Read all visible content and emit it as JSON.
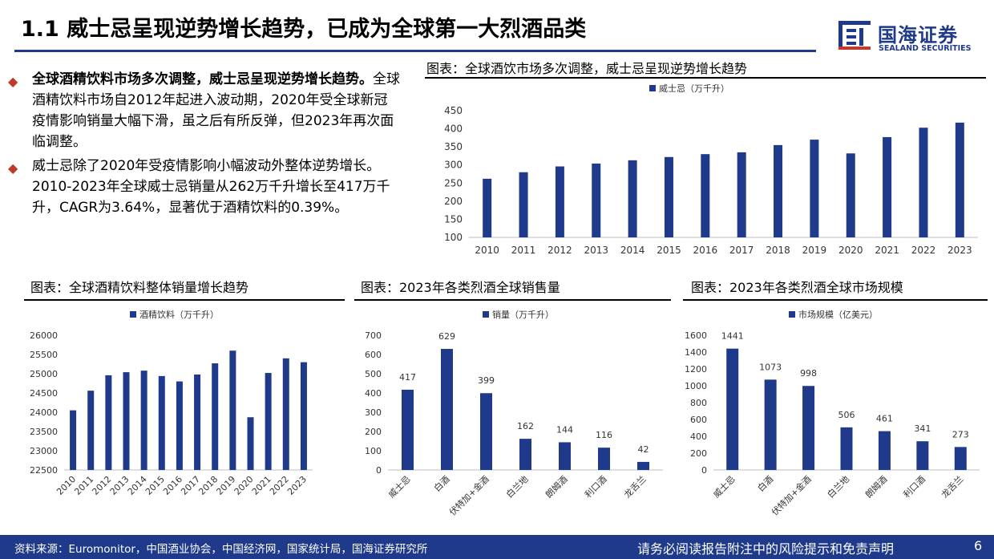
{
  "header": {
    "title": "1.1 威士忌呈现逆势增长趋势，已成为全球第一大烈酒品类",
    "logo_cn": "国海证券",
    "logo_en": "SEALAND SECURITIES"
  },
  "bullets": [
    {
      "bold": "全球酒精饮料市场多次调整，威士忌呈现逆势增长趋势。",
      "text": "全球酒精饮料市场自2012年起进入波动期，2020年受全球新冠疫情影响销量大幅下滑，虽之后有所反弹，但2023年再次面临调整。"
    },
    {
      "bold": "",
      "text": "威士忌除了2020年受疫情影响小幅波动外整体逆势增长。2010-2023年全球威士忌销量从262万千升增长至417万千升，CAGR为3.64%，显著优于酒精饮料的0.39%。"
    }
  ],
  "charts": {
    "whisky": {
      "title": "图表：全球酒饮市场多次调整，威士忌呈现逆势增长趋势"
    },
    "alcohol": {
      "title": "图表：全球酒精饮料整体销量增长趋势"
    },
    "sales": {
      "title": "图表：2023年各类烈酒全球销售量"
    },
    "market": {
      "title": "图表：2023年各类烈酒全球市场规模"
    }
  },
  "chart_data": [
    {
      "id": "whisky",
      "type": "bar",
      "categories": [
        "2010",
        "2011",
        "2012",
        "2013",
        "2014",
        "2015",
        "2016",
        "2017",
        "2018",
        "2019",
        "2020",
        "2021",
        "2022",
        "2023"
      ],
      "series": [
        {
          "name": "威士忌（万千升）",
          "values": [
            262,
            280,
            296,
            304,
            313,
            322,
            330,
            335,
            355,
            370,
            332,
            377,
            403,
            417
          ]
        }
      ],
      "ylim": [
        100,
        450
      ],
      "yticks": [
        100,
        150,
        200,
        250,
        300,
        350,
        400,
        450
      ],
      "legend": "top-left",
      "grid": false,
      "color": "#1f3a8a"
    },
    {
      "id": "alcohol",
      "type": "bar",
      "categories": [
        "2010",
        "2011",
        "2012",
        "2013",
        "2014",
        "2015",
        "2016",
        "2017",
        "2018",
        "2019",
        "2020",
        "2021",
        "2022",
        "2023"
      ],
      "series": [
        {
          "name": "酒精饮料（万千升）",
          "values": [
            24050,
            24560,
            24960,
            25040,
            25080,
            24940,
            24800,
            24980,
            25270,
            25600,
            23870,
            25020,
            25400,
            25300
          ]
        }
      ],
      "ylim": [
        22500,
        26000
      ],
      "yticks": [
        22500,
        23000,
        23500,
        24000,
        24500,
        25000,
        25500,
        26000
      ],
      "legend": "top-center",
      "grid": false,
      "color": "#1f3a8a"
    },
    {
      "id": "sales",
      "type": "bar",
      "categories": [
        "威士忌",
        "白酒",
        "伏特加+金酒",
        "白兰地",
        "朗姆酒",
        "利口酒",
        "龙舌兰"
      ],
      "series": [
        {
          "name": "销量（万千升）",
          "values": [
            417,
            629,
            399,
            162,
            144,
            116,
            42
          ]
        }
      ],
      "ylim": [
        0,
        700
      ],
      "yticks": [
        0,
        100,
        200,
        300,
        400,
        500,
        600,
        700
      ],
      "data_labels": true,
      "legend": "top-center",
      "grid": false,
      "color": "#1f3a8a"
    },
    {
      "id": "market",
      "type": "bar",
      "categories": [
        "威士忌",
        "白酒",
        "伏特加+金酒",
        "白兰地",
        "朗姆酒",
        "利口酒",
        "龙舌兰"
      ],
      "series": [
        {
          "name": "市场规模（亿美元）",
          "values": [
            1441,
            1073,
            998,
            506,
            461,
            341,
            273
          ]
        }
      ],
      "ylim": [
        0,
        1600
      ],
      "yticks": [
        0,
        200,
        400,
        600,
        800,
        1000,
        1200,
        1400,
        1600
      ],
      "data_labels": true,
      "legend": "top-center",
      "grid": false,
      "color": "#1f3a8a"
    }
  ],
  "footer": {
    "source": "资料来源：Euromonitor，中国酒业协会，中国经济网，国家统计局，国海证券研究所",
    "disclaimer": "请务必阅读报告附注中的风险提示和免责声明",
    "page": "6"
  }
}
